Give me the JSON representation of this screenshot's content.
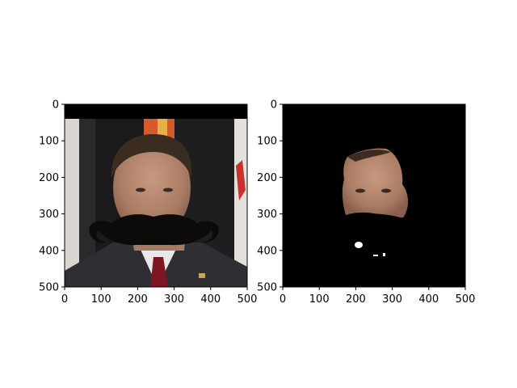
{
  "chart_data": [
    {
      "type": "image",
      "panel": "left",
      "title": "",
      "xlabel": "",
      "ylabel": "",
      "xlim": [
        0,
        500
      ],
      "ylim": [
        500,
        0
      ],
      "xticks": [
        0,
        100,
        200,
        300,
        400,
        500
      ],
      "yticks": [
        0,
        100,
        200,
        300,
        400,
        500
      ],
      "content": "photo of a man in a suit with a red tie, a large black mustache overlay; black band at top",
      "grid": false
    },
    {
      "type": "image",
      "panel": "right",
      "title": "",
      "xlabel": "",
      "ylabel": "",
      "xlim": [
        0,
        500
      ],
      "ylim": [
        500,
        0
      ],
      "xticks": [
        0,
        100,
        200,
        300,
        400,
        500
      ],
      "yticks": [
        0,
        100,
        200,
        300,
        400,
        500
      ],
      "content": "black background with segmented face region of the same man; mustache area masked black with small white specks",
      "grid": false
    }
  ],
  "colors": {
    "axis": "#000000",
    "background": "#ffffff",
    "mask": "#000000",
    "skin": "#b48a72",
    "hair": "#3b2c22",
    "suit": "#2f2f33",
    "shirt": "#e9e7ea",
    "tie": "#7d1622",
    "curtain": "#1a1a1c",
    "flag_red": "#c8312c",
    "flag_orange": "#d75a2a",
    "pillar": "#d9d6d2",
    "mustache": "#0d0a0a"
  },
  "icons": {
    "left_panel": "face-with-mustache-image",
    "right_panel": "face-segmentation-mask-image"
  }
}
